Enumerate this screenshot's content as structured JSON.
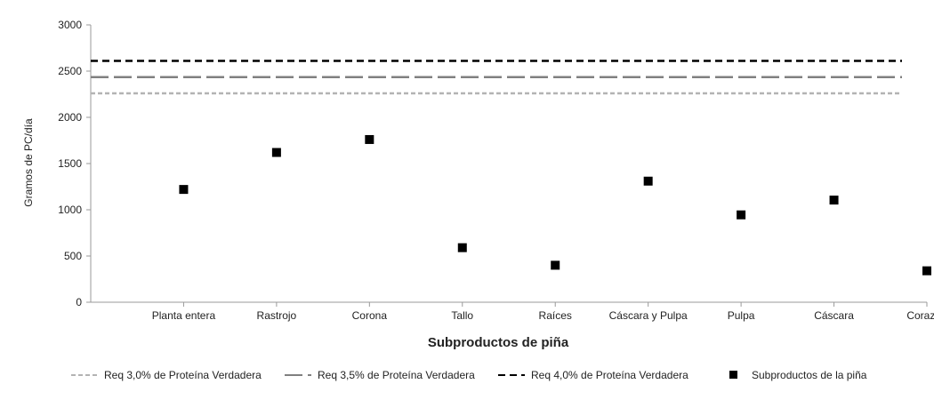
{
  "chart_data": {
    "type": "scatter",
    "title": "",
    "xlabel": "Subproductos de piña",
    "ylabel": "Gramos de PC/día",
    "ylim": [
      0,
      3000
    ],
    "yticks": [
      0,
      500,
      1000,
      1500,
      2000,
      2500,
      3000
    ],
    "grid": false,
    "legend_position": "bottom",
    "categories": [
      "Planta entera",
      "Rastrojo",
      "Corona",
      "Tallo",
      "Raíces",
      "Cáscara y Pulpa",
      "Pulpa",
      "Cáscara",
      "Corazón"
    ],
    "series": [
      {
        "name": "Subproductos de la piña",
        "kind": "points",
        "marker": "square",
        "color": "#000000",
        "values": [
          1220,
          1620,
          1760,
          590,
          400,
          1310,
          945,
          1105,
          340
        ]
      }
    ],
    "reference_lines": [
      {
        "name": "Req 3,0% de Proteína Verdadera",
        "value": 2260,
        "color": "#b3b3b3",
        "style": "short-dash"
      },
      {
        "name": "Req 3,5% de Proteína Verdadera",
        "value": 2435,
        "color": "#808080",
        "style": "long-dash"
      },
      {
        "name": "Req 4,0% de Proteína Verdadera",
        "value": 2610,
        "color": "#000000",
        "style": "dash"
      }
    ]
  }
}
